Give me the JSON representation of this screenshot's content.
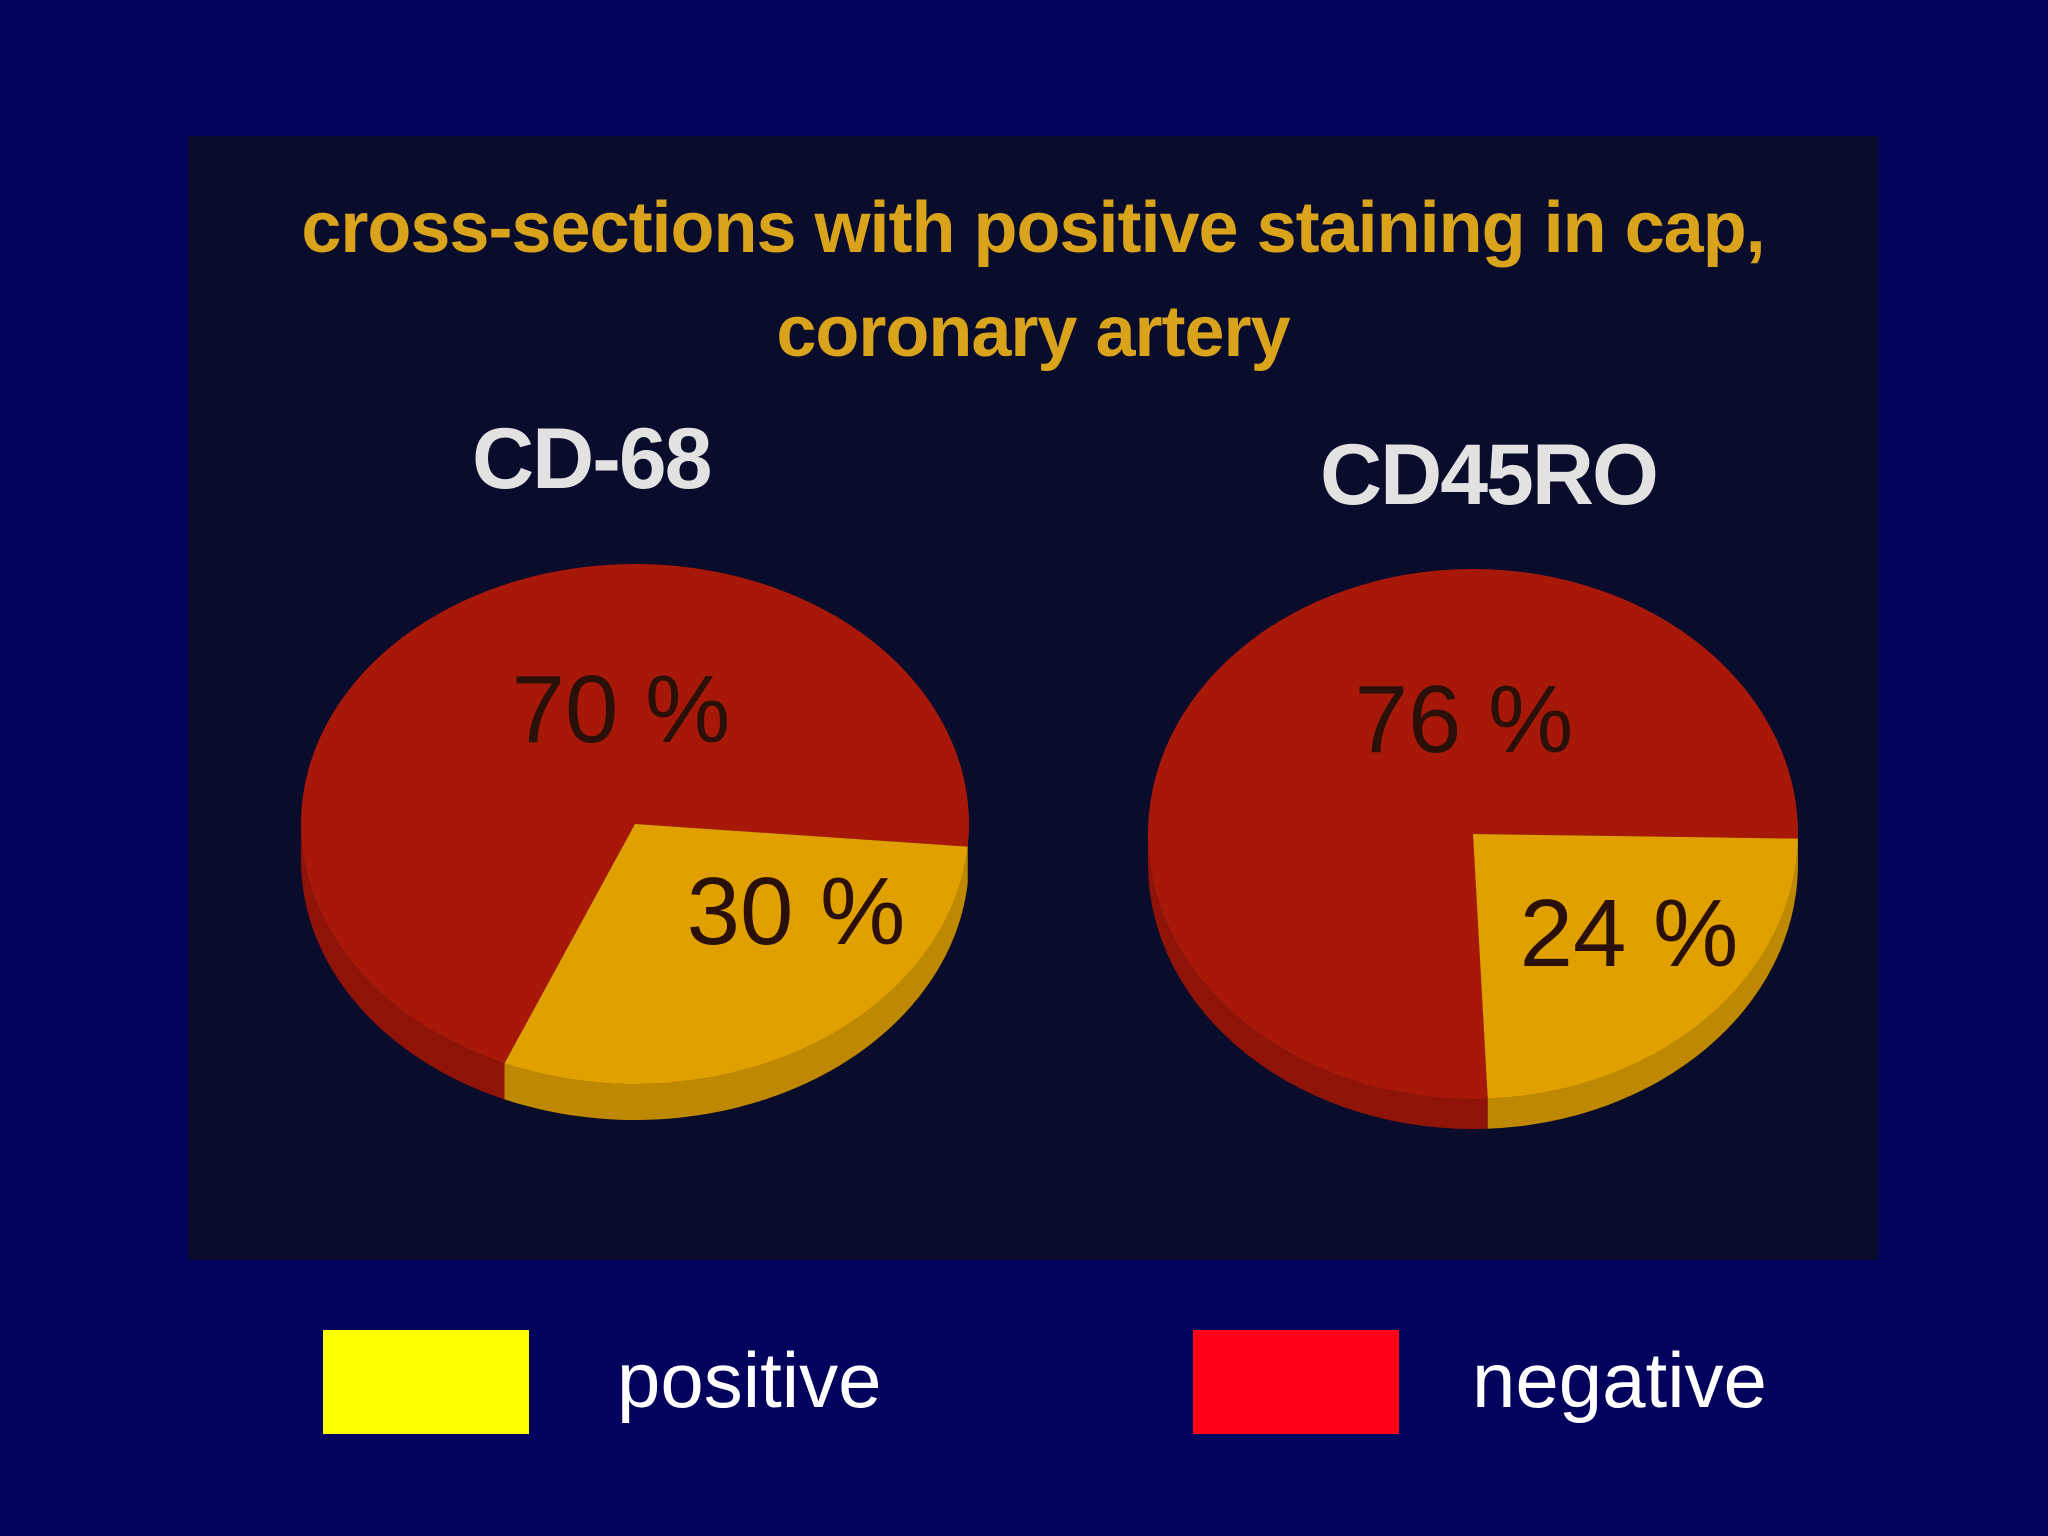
{
  "chart_data": [
    {
      "type": "pie",
      "title": "cross-sections with positive staining in cap, coronary artery",
      "name": "CD-68",
      "slices": [
        {
          "label": "negative",
          "value": 70,
          "display": "70 %",
          "color": "#a81808"
        },
        {
          "label": "positive",
          "value": 30,
          "display": "30 %",
          "color": "#e0a000"
        }
      ]
    },
    {
      "type": "pie",
      "title": "cross-sections with positive staining in cap, coronary artery",
      "name": "CD45RO",
      "slices": [
        {
          "label": "negative",
          "value": 76,
          "display": "76 %",
          "color": "#a81808"
        },
        {
          "label": "positive",
          "value": 24,
          "display": "24 %",
          "color": "#e0a000"
        }
      ]
    }
  ],
  "title_lines": [
    "cross-sections with positive staining in cap,",
    "coronary artery"
  ],
  "legend": [
    {
      "label": "positive",
      "color": "#ffff00"
    },
    {
      "label": "negative",
      "color": "#ff0018"
    }
  ]
}
